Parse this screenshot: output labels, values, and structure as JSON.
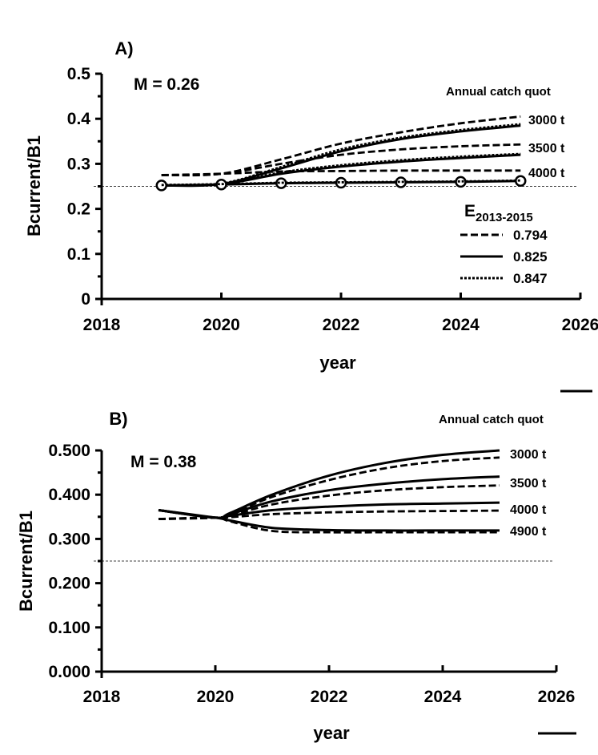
{
  "chart_data": [
    {
      "type": "line",
      "panel_label": "A)",
      "annotation": "M = 0.26",
      "xlabel": "year",
      "ylabel": "Bcurrent/B1",
      "xlim": [
        2018,
        2026
      ],
      "ylim": [
        0,
        0.5
      ],
      "xticks": [
        "2018",
        "2020",
        "2022",
        "2024",
        "2026"
      ],
      "yticks": [
        "0",
        "0.1",
        "0.2",
        "0.3",
        "0.4",
        "0.5"
      ],
      "reference_line": 0.25,
      "legend_catch_title": "Annual catch quot",
      "catch_labels": [
        "3000 t",
        "3500 t",
        "4000 t"
      ],
      "legend_e_title": "E",
      "legend_e_subscript": "2013-2015",
      "legend_entries": [
        {
          "label": "0.794",
          "style": "dashed"
        },
        {
          "label": "0.825",
          "style": "solid"
        },
        {
          "label": "0.847",
          "style": "dotted"
        }
      ],
      "x": [
        2019,
        2020,
        2021,
        2022,
        2023,
        2024,
        2025
      ],
      "series": [
        {
          "catch": "3000 t",
          "style": "dashed",
          "values": [
            0.275,
            0.278,
            0.31,
            0.345,
            0.37,
            0.39,
            0.405
          ]
        },
        {
          "catch": "3000 t",
          "style": "solid",
          "values": [
            0.252,
            0.255,
            0.29,
            0.328,
            0.355,
            0.372,
            0.385
          ]
        },
        {
          "catch": "3000 t",
          "style": "dotted",
          "values": [
            0.253,
            0.256,
            0.293,
            0.332,
            0.358,
            0.375,
            0.388
          ]
        },
        {
          "catch": "3500 t",
          "style": "dashed",
          "values": [
            0.275,
            0.278,
            0.3,
            0.32,
            0.332,
            0.339,
            0.343
          ]
        },
        {
          "catch": "3500 t",
          "style": "solid",
          "values": [
            0.252,
            0.255,
            0.278,
            0.294,
            0.305,
            0.313,
            0.32
          ]
        },
        {
          "catch": "3500 t",
          "style": "dotted",
          "values": [
            0.253,
            0.256,
            0.281,
            0.297,
            0.308,
            0.316,
            0.322
          ]
        },
        {
          "catch": "4000 t",
          "style": "dashed",
          "values": [
            0.275,
            0.278,
            0.283,
            0.284,
            0.285,
            0.285,
            0.285
          ]
        },
        {
          "catch": "4000 t",
          "style": "solid",
          "markers": "circle",
          "values": [
            0.252,
            0.254,
            0.257,
            0.258,
            0.259,
            0.26,
            0.262
          ]
        },
        {
          "catch": "4000 t",
          "style": "dotted",
          "values": [
            0.253,
            0.255,
            0.258,
            0.259,
            0.26,
            0.261,
            0.263
          ]
        }
      ]
    },
    {
      "type": "line",
      "panel_label": "B)",
      "annotation": "M = 0.38",
      "xlabel": "year",
      "ylabel": "Bcurrent/B1",
      "xlim": [
        2018,
        2026
      ],
      "ylim": [
        0,
        0.5
      ],
      "xticks": [
        "2018",
        "2020",
        "2022",
        "2024",
        "2026"
      ],
      "yticks": [
        "0.000",
        "0.100",
        "0.200",
        "0.300",
        "0.400",
        "0.500"
      ],
      "reference_line": 0.25,
      "legend_catch_title": "Annual catch quot",
      "catch_labels": [
        "3000 t",
        "3500 t",
        "4000 t",
        "4900 t"
      ],
      "x": [
        2019,
        2020,
        2020.25,
        2021,
        2022,
        2023,
        2024,
        2025
      ],
      "series": [
        {
          "catch": "3000 t",
          "style": "solid",
          "values": [
            0.365,
            0.348,
            0.358,
            0.4,
            0.443,
            0.472,
            0.49,
            0.5
          ]
        },
        {
          "catch": "3000 t",
          "style": "dashed",
          "values": [
            0.345,
            0.348,
            0.355,
            0.395,
            0.433,
            0.46,
            0.476,
            0.484
          ]
        },
        {
          "catch": "3500 t",
          "style": "solid",
          "values": [
            0.365,
            0.348,
            0.355,
            0.385,
            0.41,
            0.425,
            0.435,
            0.441
          ]
        },
        {
          "catch": "3500 t",
          "style": "dashed",
          "values": [
            0.345,
            0.348,
            0.352,
            0.378,
            0.398,
            0.41,
            0.417,
            0.421
          ]
        },
        {
          "catch": "4000 t",
          "style": "solid",
          "values": [
            0.365,
            0.348,
            0.352,
            0.365,
            0.373,
            0.378,
            0.38,
            0.382
          ]
        },
        {
          "catch": "4000 t",
          "style": "dashed",
          "values": [
            0.345,
            0.348,
            0.349,
            0.356,
            0.36,
            0.362,
            0.363,
            0.364
          ]
        },
        {
          "catch": "4900 t",
          "style": "solid",
          "values": [
            0.365,
            0.348,
            0.342,
            0.325,
            0.32,
            0.319,
            0.319,
            0.319
          ]
        },
        {
          "catch": "4900 t",
          "style": "dashed",
          "values": [
            0.345,
            0.348,
            0.34,
            0.318,
            0.315,
            0.315,
            0.315,
            0.315
          ]
        }
      ]
    }
  ]
}
